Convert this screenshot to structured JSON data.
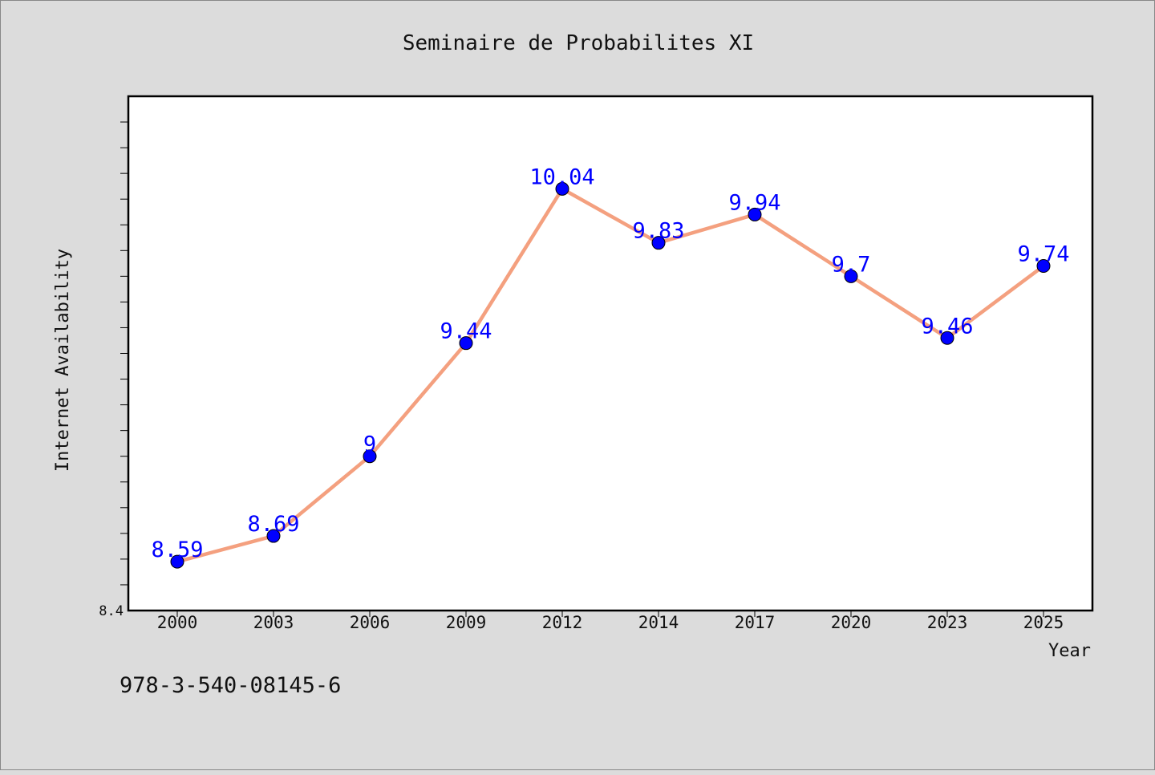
{
  "chart_data": {
    "type": "line",
    "title": "Seminaire de Probabilites XI",
    "xlabel": "Year",
    "ylabel": "Internet Availability",
    "categories": [
      "2000",
      "2003",
      "2006",
      "2009",
      "2012",
      "2014",
      "2017",
      "2020",
      "2023",
      "2025"
    ],
    "values": [
      8.59,
      8.69,
      9.0,
      9.44,
      10.04,
      9.83,
      9.94,
      9.7,
      9.46,
      9.74
    ],
    "data_labels": [
      "8.59",
      "8.69",
      "9",
      "9.44",
      "10.04",
      "9.83",
      "9.94",
      "9.7",
      "9.46",
      "9.74"
    ],
    "y_tick_labels": [
      "8.4"
    ],
    "ylim": [
      8.4,
      10.4
    ],
    "grid": false,
    "legend": "none",
    "line_color": "#f4a07f",
    "marker_color": "#0000ff"
  },
  "footer": {
    "isbn": "978-3-540-08145-6"
  }
}
